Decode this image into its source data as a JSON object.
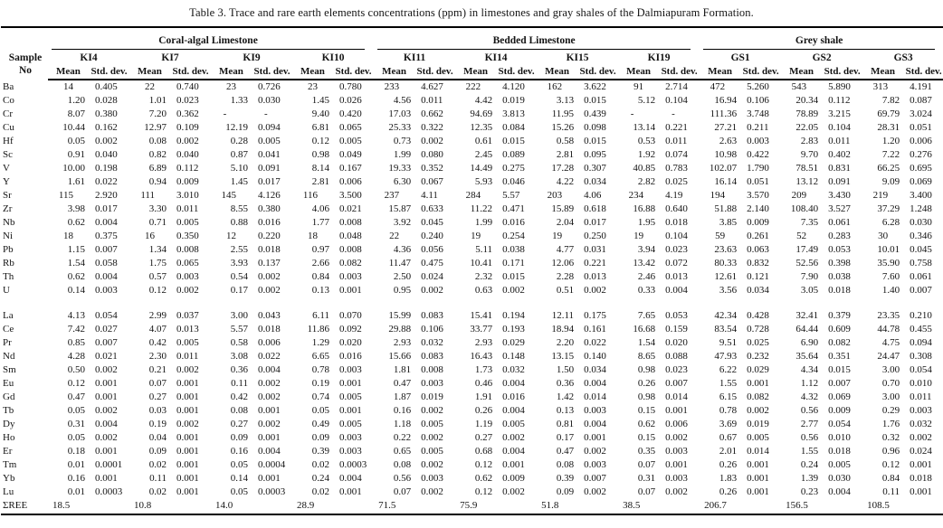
{
  "title": "Table 3. Trace and rare earth elements concentrations (ppm) in limestones and gray shales of the Dalmiapuram Formation.",
  "header": {
    "sample_label_line1": "Sample",
    "sample_label_line2": "No",
    "stat_labels": [
      "Mean",
      "Std. dev."
    ],
    "groups": [
      {
        "label": "Coral-algal Limestone",
        "samples": [
          "KI4",
          "KI7",
          "KI9",
          "KI10"
        ]
      },
      {
        "label": "Bedded Limestone",
        "samples": [
          "KI11",
          "KI14",
          "KI15",
          "KI19"
        ]
      },
      {
        "label": "Grey shale",
        "samples": [
          "GS1",
          "GS2",
          "GS3"
        ]
      }
    ]
  },
  "sections": [
    {
      "rows": [
        {
          "element": "Ba",
          "values": [
            "14",
            "0.405",
            "22",
            "0.740",
            "23",
            "0.726",
            "23",
            "0.780",
            "233",
            "4.627",
            "222",
            "4.120",
            "162",
            "3.622",
            "91",
            "2.714",
            "472",
            "5.260",
            "543",
            "5.890",
            "313",
            "4.191"
          ]
        },
        {
          "element": "Co",
          "values": [
            "1.20",
            "0.028",
            "1.01",
            "0.023",
            "1.33",
            "0.030",
            "1.45",
            "0.026",
            "4.56",
            "0.011",
            "4.42",
            "0.019",
            "3.13",
            "0.015",
            "5.12",
            "0.104",
            "16.94",
            "0.106",
            "20.34",
            "0.112",
            "7.82",
            "0.087"
          ]
        },
        {
          "element": "Cr",
          "values": [
            "8.07",
            "0.380",
            "7.20",
            "0.362",
            "-",
            "-",
            "9.40",
            "0.420",
            "17.03",
            "0.662",
            "94.69",
            "3.813",
            "11.95",
            "0.439",
            "-",
            "-",
            "111.36",
            "3.748",
            "78.89",
            "3.215",
            "69.79",
            "3.024"
          ]
        },
        {
          "element": "Cu",
          "values": [
            "10.44",
            "0.162",
            "12.97",
            "0.109",
            "12.19",
            "0.094",
            "6.81",
            "0.065",
            "25.33",
            "0.322",
            "12.35",
            "0.084",
            "15.26",
            "0.098",
            "13.14",
            "0.221",
            "27.21",
            "0.211",
            "22.05",
            "0.104",
            "28.31",
            "0.051"
          ]
        },
        {
          "element": "Hf",
          "values": [
            "0.05",
            "0.002",
            "0.08",
            "0.002",
            "0.28",
            "0.005",
            "0.12",
            "0.005",
            "0.73",
            "0.002",
            "0.61",
            "0.015",
            "0.58",
            "0.015",
            "0.53",
            "0.011",
            "2.63",
            "0.003",
            "2.83",
            "0.011",
            "1.20",
            "0.006"
          ]
        },
        {
          "element": "Sc",
          "values": [
            "0.91",
            "0.040",
            "0.82",
            "0.040",
            "0.87",
            "0.041",
            "0.98",
            "0.049",
            "1.99",
            "0.080",
            "2.45",
            "0.089",
            "2.81",
            "0.095",
            "1.92",
            "0.074",
            "10.98",
            "0.422",
            "9.70",
            "0.402",
            "7.22",
            "0.276"
          ]
        },
        {
          "element": "V",
          "values": [
            "10.00",
            "0.198",
            "6.89",
            "0.112",
            "5.10",
            "0.091",
            "8.14",
            "0.167",
            "19.33",
            "0.352",
            "14.49",
            "0.275",
            "17.28",
            "0.307",
            "40.85",
            "0.783",
            "102.07",
            "1.790",
            "78.51",
            "0.831",
            "66.25",
            "0.695"
          ]
        },
        {
          "element": "Y",
          "values": [
            "1.61",
            "0.022",
            "0.94",
            "0.009",
            "1.45",
            "0.017",
            "2.81",
            "0.006",
            "6.30",
            "0.067",
            "5.93",
            "0.046",
            "4.22",
            "0.034",
            "2.82",
            "0.025",
            "16.14",
            "0.051",
            "13.12",
            "0.091",
            "9.09",
            "0.069"
          ]
        },
        {
          "element": "Sr",
          "values": [
            "115",
            "2.920",
            "111",
            "3.010",
            "145",
            "4.126",
            "116",
            "3.500",
            "237",
            "4.11",
            "284",
            "5.57",
            "203",
            "4.06",
            "234",
            "4.19",
            "194",
            "3.570",
            "209",
            "3.430",
            "219",
            "3.400"
          ]
        },
        {
          "element": "Zr",
          "values": [
            "3.98",
            "0.017",
            "3.30",
            "0.011",
            "8.55",
            "0.380",
            "4.06",
            "0.021",
            "15.87",
            "0.633",
            "11.22",
            "0.471",
            "15.89",
            "0.618",
            "16.88",
            "0.640",
            "51.88",
            "2.140",
            "108.40",
            "3.527",
            "37.29",
            "1.248"
          ]
        },
        {
          "element": "Nb",
          "values": [
            "0.62",
            "0.004",
            "0.71",
            "0.005",
            "0.88",
            "0.016",
            "1.77",
            "0.008",
            "3.92",
            "0.045",
            "1.99",
            "0.016",
            "2.04",
            "0.017",
            "1.95",
            "0.018",
            "3.85",
            "0.009",
            "7.35",
            "0.061",
            "6.28",
            "0.030"
          ]
        },
        {
          "element": "Ni",
          "values": [
            "18",
            "0.375",
            "16",
            "0.350",
            "12",
            "0.220",
            "18",
            "0.048",
            "22",
            "0.240",
            "19",
            "0.254",
            "19",
            "0.250",
            "19",
            "0.104",
            "59",
            "0.261",
            "52",
            "0.283",
            "30",
            "0.346"
          ]
        },
        {
          "element": "Pb",
          "values": [
            "1.15",
            "0.007",
            "1.34",
            "0.008",
            "2.55",
            "0.018",
            "0.97",
            "0.008",
            "4.36",
            "0.056",
            "5.11",
            "0.038",
            "4.77",
            "0.031",
            "3.94",
            "0.023",
            "23.63",
            "0.063",
            "17.49",
            "0.053",
            "10.01",
            "0.045"
          ]
        },
        {
          "element": "Rb",
          "values": [
            "1.54",
            "0.058",
            "1.75",
            "0.065",
            "3.93",
            "0.137",
            "2.66",
            "0.082",
            "11.47",
            "0.475",
            "10.41",
            "0.171",
            "12.06",
            "0.221",
            "13.42",
            "0.072",
            "80.33",
            "0.832",
            "52.56",
            "0.398",
            "35.90",
            "0.758"
          ]
        },
        {
          "element": "Th",
          "values": [
            "0.62",
            "0.004",
            "0.57",
            "0.003",
            "0.54",
            "0.002",
            "0.84",
            "0.003",
            "2.50",
            "0.024",
            "2.32",
            "0.015",
            "2.28",
            "0.013",
            "2.46",
            "0.013",
            "12.61",
            "0.121",
            "7.90",
            "0.038",
            "7.60",
            "0.061"
          ]
        },
        {
          "element": "U",
          "values": [
            "0.14",
            "0.003",
            "0.12",
            "0.002",
            "0.17",
            "0.002",
            "0.13",
            "0.001",
            "0.95",
            "0.002",
            "0.63",
            "0.002",
            "0.51",
            "0.002",
            "0.33",
            "0.004",
            "3.56",
            "0.034",
            "3.05",
            "0.018",
            "1.40",
            "0.007"
          ]
        }
      ]
    },
    {
      "rows": [
        {
          "element": "La",
          "values": [
            "4.13",
            "0.054",
            "2.99",
            "0.037",
            "3.00",
            "0.043",
            "6.11",
            "0.070",
            "15.99",
            "0.083",
            "15.41",
            "0.194",
            "12.11",
            "0.175",
            "7.65",
            "0.053",
            "42.34",
            "0.428",
            "32.41",
            "0.379",
            "23.35",
            "0.210"
          ]
        },
        {
          "element": "Ce",
          "values": [
            "7.42",
            "0.027",
            "4.07",
            "0.013",
            "5.57",
            "0.018",
            "11.86",
            "0.092",
            "29.88",
            "0.106",
            "33.77",
            "0.193",
            "18.94",
            "0.161",
            "16.68",
            "0.159",
            "83.54",
            "0.728",
            "64.44",
            "0.609",
            "44.78",
            "0.455"
          ]
        },
        {
          "element": "Pr",
          "values": [
            "0.85",
            "0.007",
            "0.42",
            "0.005",
            "0.58",
            "0.006",
            "1.29",
            "0.020",
            "2.93",
            "0.032",
            "2.93",
            "0.029",
            "2.20",
            "0.022",
            "1.54",
            "0.020",
            "9.51",
            "0.025",
            "6.90",
            "0.082",
            "4.75",
            "0.094"
          ]
        },
        {
          "element": "Nd",
          "values": [
            "4.28",
            "0.021",
            "2.30",
            "0.011",
            "3.08",
            "0.022",
            "6.65",
            "0.016",
            "15.66",
            "0.083",
            "16.43",
            "0.148",
            "13.15",
            "0.140",
            "8.65",
            "0.088",
            "47.93",
            "0.232",
            "35.64",
            "0.351",
            "24.47",
            "0.308"
          ]
        },
        {
          "element": "Sm",
          "values": [
            "0.50",
            "0.002",
            "0.21",
            "0.002",
            "0.36",
            "0.004",
            "0.78",
            "0.003",
            "1.81",
            "0.008",
            "1.73",
            "0.032",
            "1.50",
            "0.034",
            "0.98",
            "0.023",
            "6.22",
            "0.029",
            "4.34",
            "0.015",
            "3.00",
            "0.054"
          ]
        },
        {
          "element": "Eu",
          "values": [
            "0.12",
            "0.001",
            "0.07",
            "0.001",
            "0.11",
            "0.002",
            "0.19",
            "0.001",
            "0.47",
            "0.003",
            "0.46",
            "0.004",
            "0.36",
            "0.004",
            "0.26",
            "0.007",
            "1.55",
            "0.001",
            "1.12",
            "0.007",
            "0.70",
            "0.010"
          ]
        },
        {
          "element": "Gd",
          "values": [
            "0.47",
            "0.001",
            "0.27",
            "0.001",
            "0.42",
            "0.002",
            "0.74",
            "0.005",
            "1.87",
            "0.019",
            "1.91",
            "0.016",
            "1.42",
            "0.014",
            "0.98",
            "0.014",
            "6.15",
            "0.082",
            "4.32",
            "0.069",
            "3.00",
            "0.011"
          ]
        },
        {
          "element": "Tb",
          "values": [
            "0.05",
            "0.002",
            "0.03",
            "0.001",
            "0.08",
            "0.001",
            "0.05",
            "0.001",
            "0.16",
            "0.002",
            "0.26",
            "0.004",
            "0.13",
            "0.003",
            "0.15",
            "0.001",
            "0.78",
            "0.002",
            "0.56",
            "0.009",
            "0.29",
            "0.003"
          ]
        },
        {
          "element": "Dy",
          "values": [
            "0.31",
            "0.004",
            "0.19",
            "0.002",
            "0.27",
            "0.002",
            "0.49",
            "0.005",
            "1.18",
            "0.005",
            "1.19",
            "0.005",
            "0.81",
            "0.004",
            "0.62",
            "0.006",
            "3.69",
            "0.019",
            "2.77",
            "0.054",
            "1.76",
            "0.032"
          ]
        },
        {
          "element": "Ho",
          "values": [
            "0.05",
            "0.002",
            "0.04",
            "0.001",
            "0.09",
            "0.001",
            "0.09",
            "0.003",
            "0.22",
            "0.002",
            "0.27",
            "0.002",
            "0.17",
            "0.001",
            "0.15",
            "0.002",
            "0.67",
            "0.005",
            "0.56",
            "0.010",
            "0.32",
            "0.002"
          ]
        },
        {
          "element": "Er",
          "values": [
            "0.18",
            "0.001",
            "0.09",
            "0.001",
            "0.16",
            "0.004",
            "0.39",
            "0.003",
            "0.65",
            "0.005",
            "0.68",
            "0.004",
            "0.47",
            "0.002",
            "0.35",
            "0.003",
            "2.01",
            "0.014",
            "1.55",
            "0.018",
            "0.96",
            "0.024"
          ]
        },
        {
          "element": "Tm",
          "values": [
            "0.01",
            "0.0001",
            "0.02",
            "0.001",
            "0.05",
            "0.0004",
            "0.02",
            "0.0003",
            "0.08",
            "0.002",
            "0.12",
            "0.001",
            "0.08",
            "0.003",
            "0.07",
            "0.001",
            "0.26",
            "0.001",
            "0.24",
            "0.005",
            "0.12",
            "0.001"
          ]
        },
        {
          "element": "Yb",
          "values": [
            "0.16",
            "0.001",
            "0.11",
            "0.001",
            "0.14",
            "0.001",
            "0.24",
            "0.004",
            "0.56",
            "0.003",
            "0.62",
            "0.009",
            "0.39",
            "0.007",
            "0.31",
            "0.003",
            "1.83",
            "0.001",
            "1.39",
            "0.030",
            "0.84",
            "0.018"
          ]
        },
        {
          "element": "Lu",
          "values": [
            "0.01",
            "0.0003",
            "0.02",
            "0.001",
            "0.05",
            "0.0003",
            "0.02",
            "0.001",
            "0.07",
            "0.002",
            "0.12",
            "0.002",
            "0.09",
            "0.002",
            "0.07",
            "0.002",
            "0.26",
            "0.001",
            "0.23",
            "0.004",
            "0.11",
            "0.001"
          ]
        }
      ]
    }
  ],
  "sum_row": {
    "element": "ΣREE",
    "values": [
      "18.5",
      "",
      "10.8",
      "",
      "14.0",
      "",
      "28.9",
      "",
      "71.5",
      "",
      "75.9",
      "",
      "51.8",
      "",
      "38.5",
      "",
      "206.7",
      "",
      "156.5",
      "",
      "108.5",
      ""
    ]
  }
}
